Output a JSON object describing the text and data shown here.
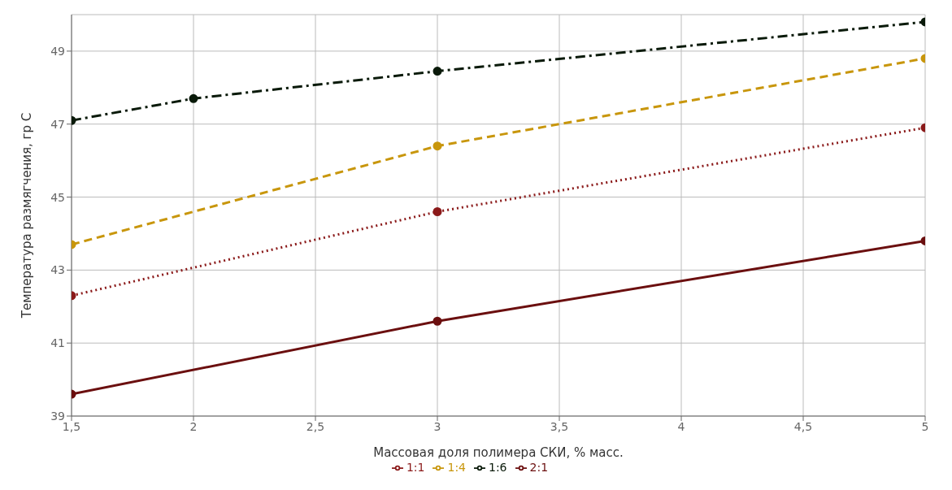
{
  "chart_data": {
    "type": "line",
    "xlabel": "Массовая доля полимера СКИ, % масс.",
    "ylabel": "Температура размягчения, гр С",
    "xlim": [
      1.5,
      5
    ],
    "xticks": [
      {
        "value": 1.5,
        "label": "1,5"
      },
      2,
      {
        "value": 2.5,
        "label": "2,5"
      },
      3,
      {
        "value": 3.5,
        "label": "3,5"
      },
      4,
      {
        "value": 4.5,
        "label": "4,5"
      },
      5
    ],
    "ylim": [
      39,
      50
    ],
    "yticks": [
      39,
      41,
      43,
      45,
      47,
      49
    ],
    "grid": true,
    "legend": "bottom",
    "marker": "circle",
    "series": [
      {
        "name": "2:1",
        "color": "#6b0f0f",
        "line_style": "solid",
        "x": [
          1.5,
          3,
          5
        ],
        "values": [
          39.6,
          41.6,
          43.8
        ]
      },
      {
        "name": "1:1",
        "color": "#8b1a1a",
        "line_style": "dotted",
        "x": [
          1.5,
          3,
          5
        ],
        "values": [
          42.3,
          44.6,
          46.9
        ]
      },
      {
        "name": "1:4",
        "color": "#c8960c",
        "line_style": "dashed",
        "x": [
          1.5,
          3,
          5
        ],
        "values": [
          43.7,
          46.4,
          48.8
        ]
      },
      {
        "name": "1:6",
        "color": "#0a1a0a",
        "line_style": "dashdot",
        "x": [
          1.5,
          2,
          3,
          5
        ],
        "values": [
          47.1,
          47.7,
          48.45,
          49.8
        ]
      }
    ]
  }
}
